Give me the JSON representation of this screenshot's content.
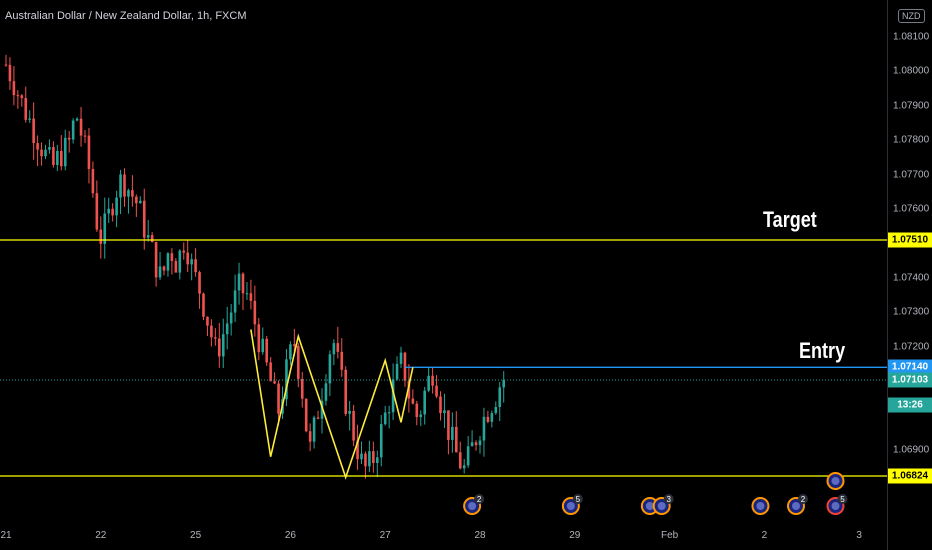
{
  "header": {
    "symbol_title": "Australian Dollar / New Zealand Dollar, 1h, FXCM"
  },
  "price_axis": {
    "currency_label": "NZD",
    "ticks": [
      {
        "label": "1.08100",
        "value": 1.081
      },
      {
        "label": "1.08000",
        "value": 1.08
      },
      {
        "label": "1.07900",
        "value": 1.079
      },
      {
        "label": "1.07800",
        "value": 1.078
      },
      {
        "label": "1.07700",
        "value": 1.077
      },
      {
        "label": "1.07600",
        "value": 1.076
      },
      {
        "label": "1.07400",
        "value": 1.074
      },
      {
        "label": "1.07300",
        "value": 1.073
      },
      {
        "label": "1.07200",
        "value": 1.072
      },
      {
        "label": "1.06900",
        "value": 1.069
      }
    ],
    "tags": [
      {
        "label": "1.07510",
        "value": 1.0751,
        "bg": "#ffff00",
        "fg": "#000000"
      },
      {
        "label": "1.07140",
        "value": 1.0714,
        "bg": "#2196f3",
        "fg": "#ffffff"
      },
      {
        "label": "1.07103",
        "value": 1.07103,
        "bg": "#26a69a",
        "fg": "#ffffff"
      },
      {
        "label": "13:26",
        "value": 1.0703,
        "bg": "#26a69a",
        "fg": "#ffffff"
      },
      {
        "label": "1.06824",
        "value": 1.06824,
        "bg": "#ffff00",
        "fg": "#000000"
      }
    ]
  },
  "time_axis": {
    "ticks": [
      {
        "label": "21",
        "bar": 0
      },
      {
        "label": "22",
        "bar": 24
      },
      {
        "label": "25",
        "bar": 48
      },
      {
        "label": "26",
        "bar": 72
      },
      {
        "label": "27",
        "bar": 96
      },
      {
        "label": "28",
        "bar": 120
      },
      {
        "label": "29",
        "bar": 144
      },
      {
        "label": "Feb",
        "bar": 168
      },
      {
        "label": "2",
        "bar": 192
      },
      {
        "label": "3",
        "bar": 216
      }
    ]
  },
  "annotations": {
    "target_label": "Target",
    "entry_label": "Entry"
  },
  "levels": {
    "target_price": 1.0751,
    "entry_price": 1.0714,
    "support_price": 1.06824,
    "last_price": 1.07103
  },
  "colors": {
    "background": "#000000",
    "up": "#26a69a",
    "down": "#ef5350",
    "level_line": "#ffff00",
    "entry_line": "#2196f3",
    "pattern_line": "#ffeb3b",
    "event_ring": "#ff9800",
    "event_ring_alert": "#f44336"
  },
  "chart_data": {
    "type": "candlestick",
    "close_path": [
      1.0802,
      1.0797,
      1.0791,
      1.0786,
      1.0781,
      1.0776,
      1.0772,
      1.0776,
      1.0778,
      1.0788,
      1.0779,
      1.0768,
      1.0751,
      1.0756,
      1.0765,
      1.0769,
      1.0765,
      1.0761,
      1.0753,
      1.0746,
      1.0739,
      1.0749,
      1.0744,
      1.0752,
      1.0742,
      1.0736,
      1.0727,
      1.0718,
      1.0724,
      1.0731,
      1.0737,
      1.0735,
      1.0727,
      1.0718,
      1.071,
      1.0701,
      1.0712,
      1.0722,
      1.0709,
      1.0689,
      1.07,
      1.0712,
      1.0723,
      1.0711,
      1.0701,
      1.0692,
      1.0684,
      1.0686,
      1.0693,
      1.0702,
      1.071,
      1.0716,
      1.0704,
      1.0699,
      1.0708,
      1.0714,
      1.0703,
      1.0695,
      1.0688,
      1.0684,
      1.0691,
      1.0697,
      1.0702,
      1.0706,
      1.0712
    ],
    "bar_count": 127,
    "pattern_points": [
      {
        "bar": 62,
        "price": 1.0725
      },
      {
        "bar": 67,
        "price": 1.0688
      },
      {
        "bar": 74,
        "price": 1.0723
      },
      {
        "bar": 86,
        "price": 1.0682
      },
      {
        "bar": 96,
        "price": 1.0716
      },
      {
        "bar": 100,
        "price": 1.0698
      },
      {
        "bar": 103,
        "price": 1.0714
      }
    ],
    "entry_line_start_bar": 101,
    "events": [
      {
        "bar": 118,
        "count": "2",
        "alert": false
      },
      {
        "bar": 143,
        "count": "5",
        "alert": false
      },
      {
        "bar": 163,
        "count": "",
        "alert": false
      },
      {
        "bar": 166,
        "count": "3",
        "alert": false
      },
      {
        "bar": 191,
        "count": "",
        "alert": false
      },
      {
        "bar": 200,
        "count": "2",
        "alert": false
      },
      {
        "bar": 210,
        "count": "5",
        "alert": true
      },
      {
        "bar": 210,
        "count": "",
        "alert": false,
        "upper": true
      }
    ]
  }
}
